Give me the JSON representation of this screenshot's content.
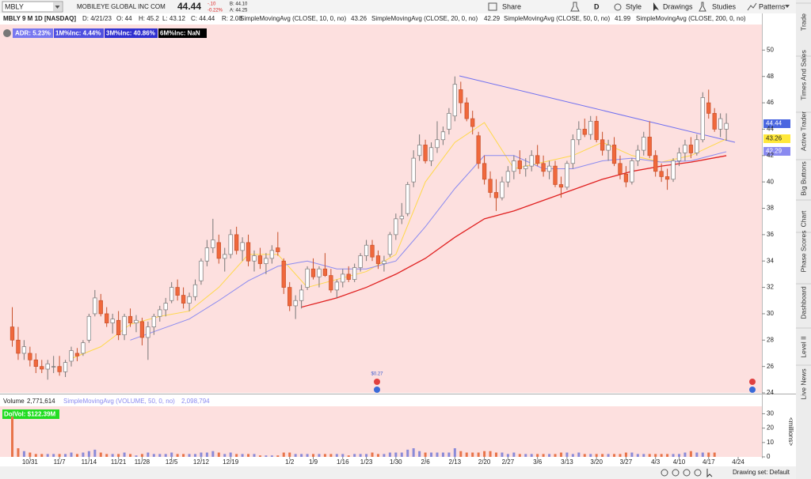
{
  "toolbar": {
    "symbol": "MBLY",
    "company": "MOBILEYE GLOBAL INC COM",
    "last": "44.44",
    "change": "-.10",
    "change_pct": "-0.22%",
    "bid": "B: 44.10",
    "ask": "A: 44.25",
    "buttons": [
      "Share",
      "D",
      "Style",
      "Drawings",
      "Studies",
      "Patterns"
    ]
  },
  "info": {
    "symbol": "MBLY 9 M 1D [NASDAQ]",
    "date": "D: 4/21/23",
    "open": "O: 44",
    "high": "H: 45.2",
    "low": "L: 43.12",
    "close": "C: 44.44",
    "range": "R: 2.08"
  },
  "badges": [
    "ADR: 5.23%",
    "1M%Inc: 4.44%",
    "3M%Inc: 40.86%",
    "6M%Inc: NaN"
  ],
  "chart_data": {
    "type": "candlestick",
    "categories": [
      null,
      null,
      null,
      "10/31",
      null,
      null,
      null,
      null,
      "11/7",
      null,
      null,
      null,
      null,
      "11/14",
      null,
      null,
      null,
      null,
      "11/21",
      null,
      null,
      null,
      "11/28",
      null,
      null,
      null,
      null,
      "12/5",
      null,
      null,
      null,
      null,
      "12/12",
      null,
      null,
      null,
      null,
      "12/19",
      null,
      null,
      null,
      null,
      null,
      null,
      null,
      null,
      null,
      "1/2",
      null,
      null,
      null,
      "1/9",
      null,
      null,
      null,
      null,
      "1/16",
      null,
      null,
      null,
      "1/23",
      null,
      null,
      null,
      null,
      "1/30",
      null,
      null,
      null,
      null,
      "2/6",
      null,
      null,
      null,
      null,
      "2/13",
      null,
      null,
      null,
      null,
      "2/20",
      null,
      null,
      null,
      "2/27",
      null,
      null,
      null,
      null,
      "3/6",
      null,
      null,
      null,
      null,
      "3/13",
      null,
      null,
      null,
      null,
      "3/20",
      null,
      null,
      null,
      null,
      "3/27",
      null,
      null,
      null,
      null,
      "4/3",
      null,
      null,
      null,
      "4/10",
      null,
      null,
      null,
      null,
      "4/17",
      null,
      null,
      null,
      null,
      "4/24"
    ],
    "candles": [
      [
        29,
        30.5,
        27.5,
        28
      ],
      [
        28,
        29,
        26.5,
        27
      ],
      [
        27,
        28,
        26.5,
        27.5
      ],
      [
        27,
        27.5,
        26,
        26.5
      ],
      [
        26.5,
        27,
        25.5,
        26
      ],
      [
        26,
        26.5,
        25.5,
        25.8
      ],
      [
        25.8,
        26.5,
        25,
        26.2
      ],
      [
        26,
        26.8,
        25.5,
        26
      ],
      [
        26,
        26.8,
        25.3,
        25.6
      ],
      [
        25.6,
        26.5,
        25.2,
        26.3
      ],
      [
        26.4,
        27.5,
        26,
        27.2
      ],
      [
        27,
        27.4,
        26.4,
        26.8
      ],
      [
        27,
        28,
        26.8,
        27.8
      ],
      [
        28,
        30,
        27.8,
        29.8
      ],
      [
        30,
        31.8,
        29.8,
        31.2
      ],
      [
        31,
        31.5,
        29.8,
        30
      ],
      [
        30,
        30.5,
        29,
        29.3
      ],
      [
        29.3,
        30,
        28.5,
        29.6
      ],
      [
        29.5,
        30.2,
        28,
        28.4
      ],
      [
        28.4,
        30,
        28,
        29.8
      ],
      [
        29.8,
        30.4,
        29,
        29.3
      ],
      [
        29.3,
        29.9,
        28.6,
        29.5
      ],
      [
        29.4,
        29.7,
        27.6,
        28.2
      ],
      [
        28.2,
        29.4,
        26.5,
        29
      ],
      [
        29,
        30,
        28.4,
        29.8
      ],
      [
        29.8,
        30.6,
        29.4,
        30.3
      ],
      [
        30.3,
        31.2,
        29.8,
        30.8
      ],
      [
        31,
        32.4,
        30.8,
        32
      ],
      [
        32,
        32.6,
        31,
        31.4
      ],
      [
        31.4,
        32,
        30.4,
        30.8
      ],
      [
        30.8,
        31.6,
        30.2,
        31.3
      ],
      [
        31.3,
        32.6,
        31,
        32.2
      ],
      [
        32.5,
        34.2,
        32.2,
        34
      ],
      [
        34,
        35.6,
        33.6,
        35
      ],
      [
        35,
        37.2,
        34.6,
        35.6
      ],
      [
        35.4,
        36,
        33.8,
        34.2
      ],
      [
        34.2,
        35,
        33.2,
        34.5
      ],
      [
        34.5,
        36.4,
        34.2,
        36
      ],
      [
        36,
        36.6,
        34.5,
        34.8
      ],
      [
        34.8,
        35.8,
        34,
        35.4
      ],
      [
        35.4,
        36,
        33.6,
        34
      ],
      [
        34,
        34.8,
        33.2,
        34.4
      ],
      [
        34.4,
        35,
        33.4,
        33.8
      ],
      [
        33.8,
        34.6,
        33,
        34.2
      ],
      [
        34.2,
        35.2,
        33.8,
        34.8
      ],
      [
        35,
        36.2,
        34.4,
        34.7
      ],
      [
        34,
        34.2,
        31.5,
        32
      ],
      [
        32,
        32.4,
        30.2,
        30.6
      ],
      [
        30.6,
        31.4,
        29.6,
        31
      ],
      [
        31,
        32.2,
        30.4,
        31.8
      ],
      [
        32,
        33.6,
        31.8,
        33.4
      ],
      [
        33.4,
        34.2,
        32.6,
        32.8
      ],
      [
        32.8,
        33.6,
        32,
        33.4
      ],
      [
        33.4,
        34.6,
        32.8,
        32.9
      ],
      [
        32.9,
        33.4,
        31.6,
        31.8
      ],
      [
        31.8,
        32.6,
        31.2,
        32.4
      ],
      [
        32.4,
        33.4,
        32,
        33
      ],
      [
        33,
        33.6,
        32.4,
        32.6
      ],
      [
        32.6,
        33.8,
        32.4,
        33.5
      ],
      [
        33.5,
        34.6,
        33.2,
        34.4
      ],
      [
        34.4,
        35.6,
        34,
        35.2
      ],
      [
        35.2,
        35.6,
        34,
        34.3
      ],
      [
        34.4,
        34.8,
        33.4,
        33.8
      ],
      [
        33.8,
        34.4,
        33.2,
        34
      ],
      [
        34.5,
        36.2,
        34.3,
        36
      ],
      [
        36,
        37.6,
        35.6,
        37.2
      ],
      [
        37.2,
        38.4,
        36.8,
        37.4
      ],
      [
        37.6,
        40,
        37.4,
        39.8
      ],
      [
        40,
        42.4,
        39.6,
        41.8
      ],
      [
        42,
        43.6,
        41.6,
        42.8
      ],
      [
        42.8,
        43.2,
        41.4,
        41.6
      ],
      [
        41.6,
        43,
        41.2,
        42.6
      ],
      [
        42.6,
        44.6,
        42.2,
        43.2
      ],
      [
        43.2,
        44.2,
        42.8,
        43.8
      ],
      [
        44,
        45.6,
        43.6,
        45.2
      ],
      [
        45,
        48,
        44.6,
        47.4
      ],
      [
        47,
        47.6,
        45.2,
        46
      ],
      [
        46,
        46.4,
        44.6,
        44.8
      ],
      [
        44.8,
        45.4,
        43.6,
        44.2
      ],
      [
        43.5,
        43.8,
        41,
        41.4
      ],
      [
        41.4,
        42,
        39.8,
        40.2
      ],
      [
        40.2,
        40.8,
        38.8,
        39.2
      ],
      [
        39.2,
        40.2,
        37.8,
        38.8
      ],
      [
        38.8,
        40.4,
        38.6,
        40
      ],
      [
        40,
        41.2,
        39.6,
        40.8
      ],
      [
        40.8,
        42,
        40.2,
        41.6
      ],
      [
        41.6,
        42.4,
        40.6,
        41
      ],
      [
        41,
        41.8,
        40.4,
        41.2
      ],
      [
        41.2,
        42.4,
        40.8,
        42
      ],
      [
        42,
        42.8,
        41.2,
        41.4
      ],
      [
        41.4,
        42,
        40.4,
        40.8
      ],
      [
        40.8,
        41.6,
        40.2,
        41.2
      ],
      [
        41.2,
        41.6,
        39.6,
        39.8
      ],
      [
        39.8,
        40.4,
        38.8,
        39.6
      ],
      [
        39.6,
        41.6,
        39.4,
        41.4
      ],
      [
        41.4,
        43.6,
        41,
        43.2
      ],
      [
        43.2,
        44.6,
        42.8,
        44
      ],
      [
        44,
        44.8,
        43.4,
        43.6
      ],
      [
        43.6,
        45,
        43.2,
        44.6
      ],
      [
        44.6,
        45,
        43,
        43.2
      ],
      [
        43.2,
        43.8,
        42,
        42.4
      ],
      [
        42.4,
        43.2,
        41.6,
        42.8
      ],
      [
        42.8,
        43.4,
        41.2,
        41.4
      ],
      [
        41.4,
        42,
        40.2,
        40.6
      ],
      [
        40.6,
        41.2,
        39.6,
        40
      ],
      [
        40,
        41.8,
        39.8,
        41.6
      ],
      [
        41.6,
        42.8,
        41.2,
        42.4
      ],
      [
        42.4,
        43.8,
        42,
        43.4
      ],
      [
        43.4,
        44.6,
        41.8,
        42
      ],
      [
        42,
        42.4,
        40.4,
        40.8
      ],
      [
        40.8,
        41.4,
        40,
        40.4
      ],
      [
        40.4,
        41,
        39.4,
        40.2
      ],
      [
        40.2,
        41.8,
        40,
        41.6
      ],
      [
        41.6,
        42.6,
        41.2,
        42.2
      ],
      [
        42.2,
        43.2,
        41.6,
        42.8
      ],
      [
        42.8,
        43.4,
        41.8,
        42.2
      ],
      [
        42.2,
        43.6,
        42,
        43.2
      ],
      [
        43.2,
        46.8,
        43,
        46.4
      ],
      [
        46,
        47,
        44.8,
        45.2
      ],
      [
        45.2,
        45.6,
        43.8,
        44
      ],
      [
        44,
        45.2,
        43.4,
        44.8
      ],
      [
        44,
        45.2,
        43.12,
        44.44
      ],
      null
    ],
    "up_color": "#ffffff",
    "down_color": "#f0683c",
    "ylim": [
      24,
      51.7
    ],
    "yticks": [
      24,
      26,
      28,
      30,
      32,
      34,
      36,
      38,
      40,
      42,
      44,
      46,
      48,
      50
    ],
    "studies": [
      {
        "name": "SimpleMovingAvg (CLOSE, 10, 0, no)",
        "color": "#ffd84a",
        "value_label": "43.26",
        "x": [
          10,
          15,
          20,
          25,
          30,
          35,
          40,
          45,
          50,
          55,
          60,
          65,
          70,
          75,
          80,
          85,
          90,
          95,
          100,
          105,
          110,
          115,
          121
        ],
        "values": [
          26.6,
          27.5,
          29.2,
          29.8,
          30.2,
          32,
          34.5,
          34.5,
          32,
          32.6,
          33.2,
          34.5,
          40,
          43,
          44.5,
          41,
          41.5,
          42,
          43,
          42,
          41.5,
          42,
          43.26
        ]
      },
      {
        "name": "SimpleMovingAvg (CLOSE, 20, 0, no)",
        "color": "#8a8af0",
        "value_label": "42.29",
        "x": [
          20,
          25,
          30,
          35,
          40,
          45,
          50,
          55,
          60,
          65,
          70,
          75,
          80,
          85,
          90,
          95,
          100,
          105,
          110,
          115,
          121
        ],
        "values": [
          28,
          28.8,
          29.6,
          31,
          32.5,
          33.6,
          34,
          33.4,
          33.4,
          34,
          36.6,
          39.5,
          42,
          42,
          41,
          41,
          41.6,
          41.8,
          41.5,
          41.6,
          42.29
        ]
      },
      {
        "name": "SimpleMovingAvg (CLOSE, 50, 0, no)",
        "color": "#e02020",
        "value_label": "41.99",
        "x": [
          49,
          55,
          60,
          65,
          70,
          75,
          80,
          85,
          90,
          95,
          100,
          105,
          110,
          115,
          121
        ],
        "values": [
          30.5,
          31.2,
          32,
          33,
          34.2,
          35.8,
          37.2,
          37.8,
          38.6,
          39.4,
          40.2,
          40.8,
          41.2,
          41.5,
          41.99
        ]
      },
      {
        "name": "SimpleMovingAvg (CLOSE, 200, 0, no)",
        "color": "#1a8a1a"
      }
    ],
    "dividend_label": "$0.27"
  },
  "volume_pane": {
    "title": "Volume",
    "value": "2,771,614",
    "study_name": "SimpleMovingAvg (VOLUME, 50, 0, no)",
    "study_value": "2,098,794",
    "dolvol": "DolVol: $122.39M",
    "unit": "<millions>",
    "ylim": [
      0,
      33
    ],
    "yticks": [
      0,
      10,
      20,
      30
    ],
    "values": [
      28,
      6,
      4,
      3,
      2,
      2,
      2,
      2,
      2,
      2,
      3,
      2,
      3,
      4,
      5,
      3,
      2,
      2,
      2,
      3,
      2,
      1,
      2,
      3,
      2,
      2,
      2,
      3,
      2,
      2,
      2,
      2,
      3,
      3,
      4,
      3,
      2,
      3,
      2,
      2,
      2,
      2,
      1,
      1,
      1,
      1,
      3,
      3,
      2,
      2,
      2,
      2,
      2,
      2,
      2,
      2,
      2,
      1,
      2,
      2,
      2,
      3,
      2,
      2,
      3,
      3,
      3,
      5,
      6,
      4,
      3,
      3,
      3,
      3,
      3,
      6,
      4,
      3,
      3,
      3,
      4,
      4,
      3,
      3,
      2,
      3,
      2,
      2,
      2,
      2,
      2,
      2,
      2,
      3,
      3,
      2,
      3,
      2,
      2,
      2,
      2,
      2,
      2,
      2,
      3,
      3,
      2,
      2,
      2,
      2,
      2,
      2,
      2,
      2,
      3,
      4,
      3,
      3,
      3,
      3,
      null
    ]
  },
  "sidebar_tabs": [
    "Trade",
    "Times And Sales",
    "Active Trader",
    "Big Buttons",
    "Chart",
    "Phase Scores",
    "Dashboard",
    "Level II",
    "Live News"
  ],
  "status": "Drawing set: Default"
}
